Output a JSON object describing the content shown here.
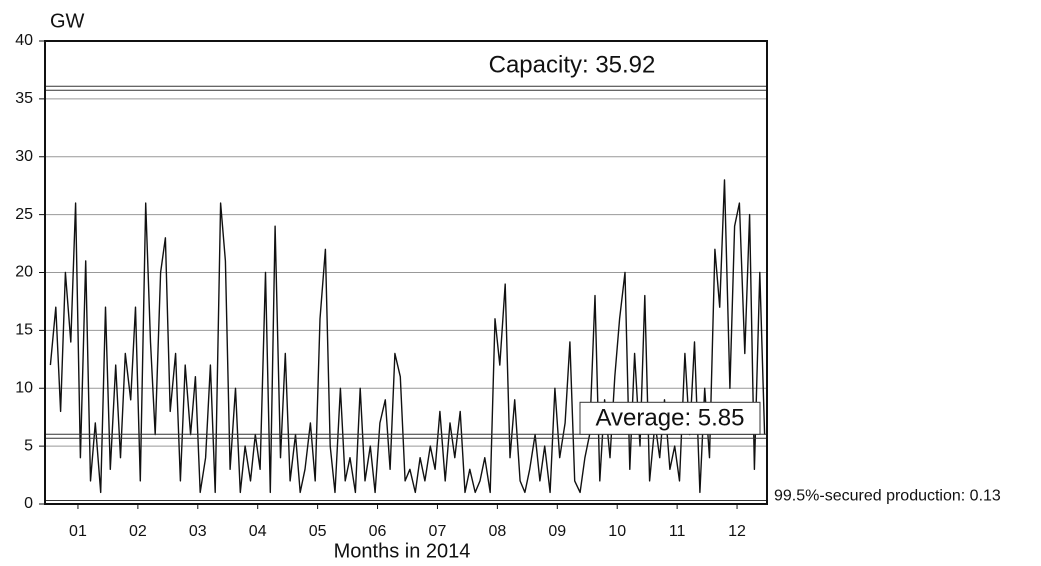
{
  "chart_data": {
    "type": "line",
    "ylabel": "GW",
    "xlabel": "Months in 2014",
    "xlim": [
      0.45,
      12.5
    ],
    "xticks": [
      {
        "value": 1,
        "label": "01"
      },
      {
        "value": 2,
        "label": "02"
      },
      {
        "value": 3,
        "label": "03"
      },
      {
        "value": 4,
        "label": "04"
      },
      {
        "value": 5,
        "label": "05"
      },
      {
        "value": 6,
        "label": "06"
      },
      {
        "value": 7,
        "label": "07"
      },
      {
        "value": 8,
        "label": "08"
      },
      {
        "value": 9,
        "label": "09"
      },
      {
        "value": 10,
        "label": "10"
      },
      {
        "value": 11,
        "label": "11"
      },
      {
        "value": 12,
        "label": "12"
      }
    ],
    "ylim": [
      0,
      40
    ],
    "yticks": [
      0,
      5,
      10,
      15,
      20,
      25,
      30,
      35,
      40
    ],
    "grid": true,
    "annotations": [
      {
        "label": "Capacity: 35.92",
        "value": 35.92
      },
      {
        "label": "Average: 5.85",
        "value": 5.85
      },
      {
        "label": "99.5%-secured production: 0.13",
        "value": 0.13
      }
    ],
    "series": [
      {
        "color": "#111111",
        "x": [
          0.54,
          0.63,
          0.71,
          0.79,
          0.88,
          0.96,
          1.04,
          1.13,
          1.21,
          1.29,
          1.38,
          1.46,
          1.54,
          1.63,
          1.71,
          1.79,
          1.88,
          1.96,
          2.04,
          2.13,
          2.21,
          2.29,
          2.38,
          2.46,
          2.54,
          2.63,
          2.71,
          2.79,
          2.88,
          2.96,
          3.04,
          3.13,
          3.21,
          3.29,
          3.38,
          3.46,
          3.54,
          3.63,
          3.71,
          3.79,
          3.88,
          3.96,
          4.04,
          4.13,
          4.21,
          4.29,
          4.38,
          4.46,
          4.54,
          4.63,
          4.71,
          4.79,
          4.88,
          4.96,
          5.04,
          5.13,
          5.21,
          5.29,
          5.38,
          5.46,
          5.54,
          5.63,
          5.71,
          5.79,
          5.88,
          5.96,
          6.04,
          6.13,
          6.21,
          6.29,
          6.38,
          6.46,
          6.54,
          6.63,
          6.71,
          6.79,
          6.88,
          6.96,
          7.04,
          7.13,
          7.21,
          7.29,
          7.38,
          7.46,
          7.54,
          7.63,
          7.71,
          7.79,
          7.88,
          7.96,
          8.04,
          8.13,
          8.21,
          8.29,
          8.38,
          8.46,
          8.54,
          8.63,
          8.71,
          8.79,
          8.88,
          8.96,
          9.04,
          9.13,
          9.21,
          9.29,
          9.38,
          9.46,
          9.54,
          9.63,
          9.71,
          9.79,
          9.88,
          9.96,
          10.04,
          10.13,
          10.21,
          10.29,
          10.38,
          10.46,
          10.54,
          10.63,
          10.71,
          10.79,
          10.88,
          10.96,
          11.04,
          11.13,
          11.21,
          11.29,
          11.38,
          11.46,
          11.54,
          11.63,
          11.71,
          11.79,
          11.88,
          11.96,
          12.04,
          12.13,
          12.21,
          12.29,
          12.38,
          12.46
        ],
        "values": [
          12,
          17,
          8,
          20,
          14,
          26,
          4,
          21,
          2,
          7,
          1,
          17,
          3,
          12,
          4,
          13,
          9,
          17,
          2,
          26,
          14,
          6,
          20,
          23,
          8,
          13,
          2,
          12,
          6,
          11,
          1,
          4,
          12,
          1,
          26,
          21,
          3,
          10,
          1,
          5,
          2,
          6,
          3,
          20,
          1,
          24,
          4,
          13,
          2,
          6,
          1,
          3,
          7,
          2,
          16,
          22,
          5,
          1,
          10,
          2,
          4,
          1,
          10,
          2,
          5,
          1,
          7,
          9,
          3,
          13,
          11,
          2,
          3,
          1,
          4,
          2,
          5,
          3,
          8,
          2,
          7,
          4,
          8,
          1,
          3,
          1,
          2,
          4,
          1,
          16,
          12,
          19,
          4,
          9,
          2,
          1,
          3,
          6,
          2,
          5,
          1,
          10,
          4,
          7,
          14,
          2,
          1,
          4,
          6,
          18,
          2,
          9,
          4,
          11,
          16,
          20,
          3,
          13,
          5,
          18,
          2,
          7,
          4,
          9,
          3,
          5,
          2,
          13,
          6,
          14,
          1,
          10,
          4,
          22,
          17,
          28,
          10,
          24,
          26,
          13,
          25,
          3,
          20,
          6
        ]
      }
    ]
  }
}
